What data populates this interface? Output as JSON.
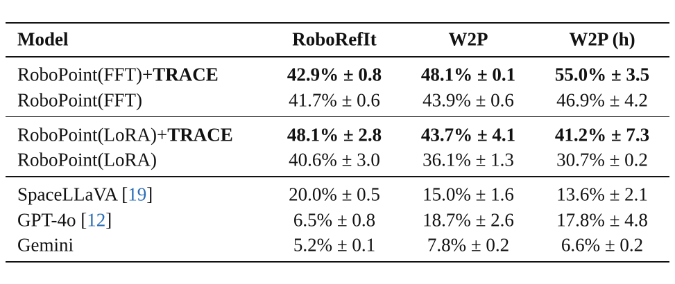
{
  "table": {
    "header": [
      "Model",
      "RoboRefIt",
      "W2P",
      "W2P (h)"
    ],
    "groups": [
      [
        {
          "model": [
            {
              "text": "RoboPoint(FFT)+"
            },
            {
              "text": "TRACE",
              "bold": true
            }
          ],
          "cells": [
            "42.9% ± 0.8",
            "48.1% ± 0.1",
            "55.0% ± 3.5"
          ],
          "bold": true
        },
        {
          "model": [
            {
              "text": "RoboPoint(FFT)"
            }
          ],
          "cells": [
            "41.7% ± 0.6",
            "43.9% ± 0.6",
            "46.9% ± 4.2"
          ],
          "bold": false
        }
      ],
      [
        {
          "model": [
            {
              "text": "RoboPoint(LoRA)+"
            },
            {
              "text": "TRACE",
              "bold": true
            }
          ],
          "cells": [
            "48.1% ± 2.8",
            "43.7% ± 4.1",
            "41.2% ± 7.3"
          ],
          "bold": true
        },
        {
          "model": [
            {
              "text": "RoboPoint(LoRA)"
            }
          ],
          "cells": [
            "40.6% ± 3.0",
            "36.1% ± 1.3",
            "30.7% ± 0.2"
          ],
          "bold": false
        }
      ],
      [
        {
          "model": [
            {
              "text": "SpaceLLaVA ["
            },
            {
              "text": "19",
              "link": true
            },
            {
              "text": "]"
            }
          ],
          "cells": [
            "20.0% ± 0.5",
            "15.0% ± 1.6",
            "13.6% ± 2.1"
          ],
          "bold": false
        },
        {
          "model": [
            {
              "text": "GPT-4o ["
            },
            {
              "text": "12",
              "link": true
            },
            {
              "text": "]"
            }
          ],
          "cells": [
            "6.5% ± 0.8",
            "18.7% ± 2.6",
            "17.8% ± 4.8"
          ],
          "bold": false
        },
        {
          "model": [
            {
              "text": "Gemini"
            }
          ],
          "cells": [
            "5.2% ± 0.1",
            "7.8% ± 0.2",
            "6.6% ± 0.2"
          ],
          "bold": false
        }
      ]
    ]
  }
}
